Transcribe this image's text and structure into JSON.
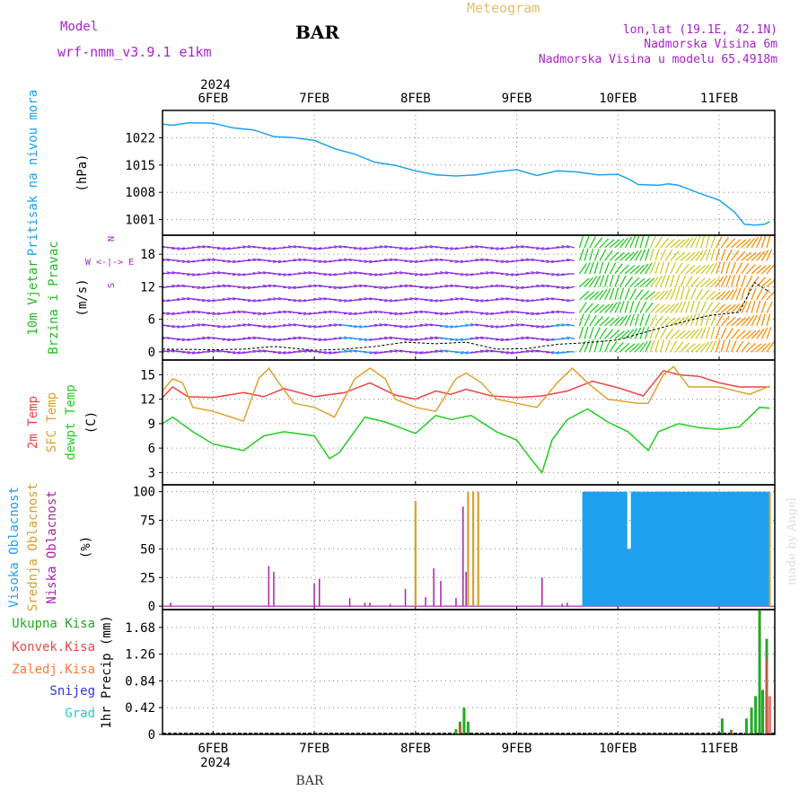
{
  "header": {
    "model_label": "Model",
    "model_name": "wrf-nmm_v3.9.1 e1km",
    "station": "BAR",
    "product": "Meteogram",
    "lonlat": "lon,lat (19.1E, 42.1N)",
    "elevation": "Nadmorska Visina 6m",
    "model_elevation": "Nadmorska Visina u modelu 65.4918m",
    "footer_station": "BAR",
    "credit": "made by Angel"
  },
  "colors": {
    "pressure": "#1ea0ee",
    "temp2m": "#ee4444",
    "sfc_temp": "#e0a030",
    "dewpoint": "#22cc22",
    "cloud_high": "#1ea0ee",
    "cloud_mid": "#d4a030",
    "cloud_low": "#aa22aa",
    "precip_total": "#22aa22",
    "precip_conv": "#ee4444",
    "precip_frz": "#ff7733",
    "snow": "#3333dd",
    "hail": "#22cccc",
    "wind_label": "#22bb22",
    "wind_dir_label": "#aa22cc",
    "header_purple": "#aa22cc",
    "header_orange": "#e0c070"
  },
  "time_axis": {
    "top_year": "2024",
    "bottom_year": "2024",
    "days": [
      "6FEB",
      "7FEB",
      "8FEB",
      "9FEB",
      "10FEB",
      "11FEB"
    ]
  },
  "chart_data": [
    {
      "id": "pressure",
      "type": "line",
      "ylabel": [
        "Pritisak na nivou mora",
        "(hPa)"
      ],
      "yticks": [
        1001,
        1008,
        1015,
        1022
      ],
      "ylim": [
        997,
        1029
      ],
      "x": [
        5.5,
        5.6,
        5.75,
        5.9,
        6.0,
        6.2,
        6.4,
        6.6,
        6.8,
        7.0,
        7.2,
        7.4,
        7.6,
        7.8,
        8.0,
        8.2,
        8.4,
        8.6,
        8.8,
        9.0,
        9.2,
        9.4,
        9.6,
        9.8,
        10.0,
        10.1,
        10.2,
        10.4,
        10.5,
        10.6,
        10.8,
        11.0,
        11.15,
        11.25,
        11.35,
        11.45,
        11.5
      ],
      "y": [
        1025.5,
        1025.2,
        1025.8,
        1025.8,
        1025.7,
        1024.5,
        1024.0,
        1022.3,
        1022.0,
        1021.3,
        1019.2,
        1017.8,
        1015.7,
        1014.9,
        1013.5,
        1012.5,
        1012.2,
        1012.5,
        1013.3,
        1013.8,
        1012.3,
        1013.5,
        1013.2,
        1012.5,
        1012.6,
        1011.5,
        1010.0,
        1009.8,
        1010.2,
        1009.8,
        1007.8,
        1006.0,
        1003.0,
        999.8,
        999.6,
        999.8,
        1000.5
      ],
      "grid": true
    },
    {
      "id": "wind",
      "type": "line",
      "ylabel": [
        "10m Vjetar",
        "Brzina i Pravac",
        "(m/s)"
      ],
      "direction_legend": [
        "N",
        "W <-|-> E",
        "S"
      ],
      "yticks": [
        0,
        6,
        12,
        18
      ],
      "ylim": [
        -1.5,
        21.5
      ],
      "series": [
        {
          "x": [
            5.5,
            6.0,
            6.3,
            6.6,
            7.0,
            7.3,
            7.6,
            7.9,
            8.2,
            8.5,
            8.8,
            9.1,
            9.4,
            9.7,
            10.0,
            10.3,
            10.6,
            10.9,
            11.2,
            11.35,
            11.5
          ],
          "y": [
            0.5,
            0.4,
            0.5,
            1.0,
            0.3,
            0.5,
            1.0,
            1.8,
            1.5,
            1.8,
            0.5,
            0.6,
            1.4,
            1.7,
            2.2,
            3.8,
            5.3,
            6.7,
            7.3,
            12.8,
            11.0
          ]
        }
      ],
      "grid": true
    },
    {
      "id": "temperature",
      "type": "line",
      "ylabel": [
        "2m Temp",
        "SFC Temp",
        "dewpt Temp",
        "(C)"
      ],
      "yticks": [
        3,
        6,
        9,
        12,
        15
      ],
      "ylim": [
        1.5,
        16.8
      ],
      "series": [
        {
          "name": "2m Temp",
          "x": [
            5.5,
            5.6,
            5.75,
            6.0,
            6.3,
            6.5,
            6.7,
            7.0,
            7.3,
            7.55,
            7.8,
            8.0,
            8.2,
            8.35,
            8.5,
            8.75,
            9.0,
            9.25,
            9.5,
            9.75,
            10.0,
            10.25,
            10.45,
            10.6,
            10.8,
            11.0,
            11.2,
            11.5
          ],
          "y": [
            12.2,
            13.5,
            12.3,
            12.2,
            12.8,
            12.3,
            13.3,
            12.3,
            12.8,
            14.0,
            12.5,
            12.0,
            13.0,
            12.6,
            13.2,
            12.4,
            12.2,
            12.4,
            13.0,
            14.2,
            13.4,
            12.4,
            15.5,
            15.0,
            14.8,
            14.0,
            13.5,
            13.5
          ]
        },
        {
          "name": "SFC Temp",
          "x": [
            5.5,
            5.6,
            5.7,
            5.8,
            6.0,
            6.3,
            6.45,
            6.55,
            6.65,
            6.8,
            7.0,
            7.2,
            7.4,
            7.55,
            7.7,
            7.8,
            8.0,
            8.2,
            8.4,
            8.5,
            8.65,
            8.8,
            9.0,
            9.2,
            9.4,
            9.55,
            9.7,
            9.9,
            10.2,
            10.3,
            10.45,
            10.55,
            10.7,
            11.0,
            11.3,
            11.5
          ],
          "y": [
            13.0,
            14.5,
            14.0,
            11.0,
            10.5,
            9.3,
            14.5,
            15.8,
            14.0,
            11.5,
            11.0,
            9.8,
            14.5,
            15.8,
            14.5,
            12.0,
            11.0,
            10.5,
            14.5,
            15.2,
            14.0,
            12.0,
            11.5,
            11.0,
            14.0,
            15.8,
            14.0,
            12.0,
            11.5,
            11.5,
            15.0,
            16.0,
            13.5,
            13.5,
            12.6,
            13.6
          ]
        },
        {
          "name": "dewpt Temp",
          "x": [
            5.5,
            5.6,
            5.8,
            6.0,
            6.3,
            6.5,
            6.7,
            7.0,
            7.15,
            7.25,
            7.5,
            7.7,
            8.0,
            8.2,
            8.35,
            8.55,
            8.8,
            9.0,
            9.15,
            9.25,
            9.35,
            9.5,
            9.7,
            9.9,
            10.1,
            10.3,
            10.4,
            10.6,
            10.8,
            11.0,
            11.2,
            11.4,
            11.5
          ],
          "y": [
            9.0,
            9.8,
            8.0,
            6.5,
            5.7,
            7.5,
            8.0,
            7.5,
            4.7,
            5.5,
            9.8,
            9.2,
            7.8,
            10.0,
            9.5,
            10.0,
            8.0,
            7.0,
            4.5,
            3.0,
            7.0,
            9.5,
            10.8,
            9.2,
            8.0,
            5.7,
            8.0,
            9.0,
            8.5,
            8.3,
            8.6,
            11.0,
            10.9
          ]
        }
      ],
      "grid": true
    },
    {
      "id": "clouds",
      "type": "bar",
      "ylabel": [
        "Visoka Oblacnost",
        "Srednja Oblacnost",
        "Niska Oblacnost",
        "(%)"
      ],
      "yticks": [
        0,
        25,
        50,
        75,
        100
      ],
      "ylim": [
        -3,
        106
      ],
      "series": [
        {
          "name": "Niska Oblacnost",
          "x": [
            5.58,
            6.55,
            6.6,
            7.0,
            7.05,
            7.35,
            7.5,
            7.55,
            7.75,
            7.9,
            8.0,
            8.1,
            8.18,
            8.25,
            8.4,
            8.47,
            8.5,
            9.25,
            9.45,
            9.5
          ],
          "values": [
            3,
            35,
            30,
            20,
            24,
            7,
            3,
            3,
            2,
            15,
            8,
            8,
            33,
            22,
            7,
            87,
            30,
            25,
            2,
            3
          ]
        },
        {
          "name": "Srednja Oblacnost",
          "x": [
            8.0,
            8.52,
            8.57,
            8.62,
            10.5,
            10.55,
            10.6,
            10.65,
            10.7,
            10.75,
            10.8,
            10.85,
            10.9,
            10.95,
            11.0,
            11.05,
            11.1,
            11.15,
            11.2,
            11.25,
            11.3,
            11.35,
            11.4,
            11.45,
            11.5
          ],
          "values": [
            92,
            100,
            100,
            100,
            40,
            60,
            100,
            100,
            100,
            100,
            100,
            100,
            90,
            100,
            100,
            100,
            100,
            100,
            100,
            100,
            100,
            100,
            100,
            100,
            100
          ]
        },
        {
          "name": "Visoka Oblacnost",
          "x": [
            9.67,
            9.71,
            9.75,
            9.79,
            9.83,
            9.87,
            9.91,
            9.95,
            9.99,
            10.03,
            10.07,
            10.11,
            10.15,
            10.19,
            10.23,
            10.27,
            10.31,
            10.35,
            10.39,
            10.43,
            10.47,
            10.51,
            10.55,
            10.59,
            10.63,
            10.67,
            10.71,
            10.75,
            10.79,
            10.83,
            10.87,
            10.91,
            10.95,
            10.99,
            11.03,
            11.07,
            11.11,
            11.15,
            11.19,
            11.23,
            11.27,
            11.31,
            11.35,
            11.39,
            11.43,
            11.47
          ],
          "values": [
            100,
            100,
            100,
            100,
            100,
            100,
            100,
            100,
            100,
            100,
            100,
            50,
            100,
            100,
            100,
            100,
            100,
            100,
            100,
            100,
            100,
            100,
            100,
            100,
            100,
            100,
            100,
            100,
            100,
            100,
            100,
            100,
            100,
            100,
            100,
            100,
            100,
            100,
            100,
            100,
            100,
            100,
            100,
            100,
            100,
            100
          ]
        }
      ],
      "grid": true
    },
    {
      "id": "precip",
      "type": "bar",
      "ylabel": [
        "1hr Precip (mm)"
      ],
      "legend": [
        "Ukupna Kisa",
        "Konvek.Kisa",
        "Zaledj.Kisa",
        "Snijeg",
        "Grad"
      ],
      "yticks": [
        0,
        0.42,
        0.84,
        1.26,
        1.68
      ],
      "ylim": [
        0,
        1.96
      ],
      "series": [
        {
          "name": "Ukupna Kisa",
          "x": [
            8.4,
            8.44,
            8.48,
            8.52,
            11.03,
            11.12,
            11.27,
            11.32,
            11.36,
            11.4,
            11.43,
            11.47
          ],
          "values": [
            0.08,
            0.2,
            0.42,
            0.2,
            0.25,
            0.07,
            0.25,
            0.42,
            0.6,
            1.96,
            0.7,
            1.5
          ]
        },
        {
          "name": "Konvek.Kisa",
          "x": [
            8.44,
            11.12,
            11.47,
            11.5
          ],
          "values": [
            0.15,
            0.05,
            1.2,
            0.6
          ]
        }
      ],
      "grid": true
    }
  ]
}
